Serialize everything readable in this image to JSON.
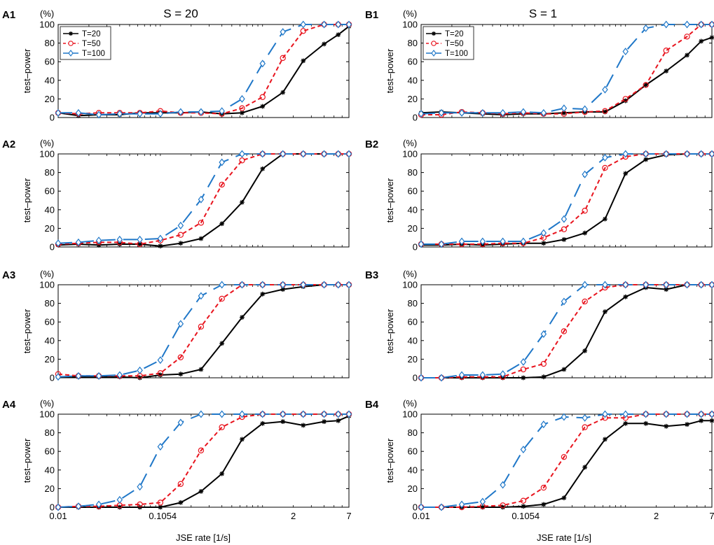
{
  "figure": {
    "column_titles": [
      "S = 20",
      "S = 1"
    ],
    "xlabel": "JSE rate [1/s]",
    "ylabel": "test–power",
    "unit_label": "(%)",
    "colors": {
      "T20": "#000000",
      "T50": "#e8141e",
      "T100": "#1f77c8"
    }
  },
  "legend": [
    "T=20",
    "T=50",
    "T=100"
  ],
  "chart_data": [
    {
      "id": "A1",
      "label": "A1",
      "type": "line",
      "title": "S = 20",
      "xlabel": "JSE rate [1/s]",
      "ylabel": "test–power",
      "xscale": "log",
      "xlim": [
        0.01,
        7
      ],
      "ylim": [
        0,
        100
      ],
      "xticks": [
        0.01,
        0.1054,
        2,
        7
      ],
      "xtick_labels": [
        "0.01",
        "0.1054",
        "2",
        "7"
      ],
      "yticks": [
        0,
        20,
        40,
        60,
        80,
        100
      ],
      "ytick_labels": [
        "0",
        "20",
        "40",
        "60",
        "80",
        "100"
      ],
      "legend_position": "top-left",
      "x": [
        0.01,
        0.0158,
        0.025,
        0.04,
        0.063,
        0.1,
        0.158,
        0.25,
        0.4,
        0.63,
        1.0,
        1.58,
        2.5,
        4.0,
        5.5,
        7.0
      ],
      "series": [
        {
          "name": "T=20",
          "values": [
            5,
            2,
            3,
            3,
            5,
            5,
            5,
            6,
            4,
            5,
            12,
            27,
            61,
            79,
            89,
            98
          ]
        },
        {
          "name": "T=50",
          "values": [
            5,
            4,
            5,
            5,
            5,
            7,
            5,
            5,
            4,
            10,
            22,
            64,
            93,
            100,
            100,
            100
          ]
        },
        {
          "name": "T=100",
          "values": [
            5,
            5,
            3,
            4,
            4,
            4,
            6,
            6,
            7,
            20,
            58,
            92,
            100,
            100,
            100,
            100
          ]
        }
      ]
    },
    {
      "id": "B1",
      "label": "B1",
      "type": "line",
      "title": "S = 1",
      "xlabel": "JSE rate [1/s]",
      "ylabel": "test–power",
      "xscale": "log",
      "xlim": [
        0.01,
        7
      ],
      "ylim": [
        0,
        100
      ],
      "xticks": [
        0.01,
        0.1054,
        2,
        7
      ],
      "xtick_labels": [
        "0.01",
        "0.1054",
        "2",
        "7"
      ],
      "yticks": [
        0,
        20,
        40,
        60,
        80,
        100
      ],
      "ytick_labels": [
        "0",
        "20",
        "40",
        "60",
        "80",
        "100"
      ],
      "legend_position": "top-left",
      "x": [
        0.01,
        0.0158,
        0.025,
        0.04,
        0.063,
        0.1,
        0.158,
        0.25,
        0.4,
        0.63,
        1.0,
        1.58,
        2.5,
        4.0,
        5.5,
        7.0
      ],
      "series": [
        {
          "name": "T=20",
          "values": [
            5,
            6,
            5,
            4,
            3,
            4,
            4,
            5,
            6,
            6,
            18,
            35,
            50,
            67,
            82,
            86
          ]
        },
        {
          "name": "T=50",
          "values": [
            3,
            3,
            6,
            5,
            4,
            5,
            4,
            4,
            6,
            7,
            20,
            35,
            72,
            87,
            100,
            100
          ]
        },
        {
          "name": "T=100",
          "values": [
            4,
            5,
            5,
            5,
            5,
            6,
            5,
            10,
            9,
            30,
            71,
            96,
            100,
            100,
            100,
            100
          ]
        }
      ]
    },
    {
      "id": "A2",
      "label": "A2",
      "type": "line",
      "title": "",
      "xlabel": "JSE rate [1/s]",
      "ylabel": "test–power",
      "xscale": "log",
      "xlim": [
        0.01,
        7
      ],
      "ylim": [
        0,
        100
      ],
      "xticks": [
        0.01,
        0.1054,
        2,
        7
      ],
      "xtick_labels": [
        "0.01",
        "0.1054",
        "2",
        "7"
      ],
      "yticks": [
        0,
        20,
        40,
        60,
        80,
        100
      ],
      "ytick_labels": [
        "0",
        "20",
        "40",
        "60",
        "80",
        "100"
      ],
      "x": [
        0.01,
        0.0158,
        0.025,
        0.04,
        0.063,
        0.1,
        0.158,
        0.25,
        0.4,
        0.63,
        1.0,
        1.58,
        2.5,
        4.0,
        5.5,
        7.0
      ],
      "series": [
        {
          "name": "T=20",
          "values": [
            2,
            3,
            2,
            3,
            3,
            1,
            4,
            9,
            25,
            48,
            84,
            100,
            100,
            100,
            100,
            100
          ]
        },
        {
          "name": "T=50",
          "values": [
            3,
            4,
            5,
            5,
            3,
            7,
            13,
            26,
            67,
            93,
            100,
            100,
            100,
            100,
            100,
            100
          ]
        },
        {
          "name": "T=100",
          "values": [
            4,
            5,
            7,
            8,
            8,
            9,
            23,
            51,
            91,
            100,
            100,
            100,
            100,
            100,
            100,
            100
          ]
        }
      ]
    },
    {
      "id": "B2",
      "label": "B2",
      "type": "line",
      "title": "",
      "xlabel": "JSE rate [1/s]",
      "ylabel": "test–power",
      "xscale": "log",
      "xlim": [
        0.01,
        7
      ],
      "ylim": [
        0,
        100
      ],
      "xticks": [
        0.01,
        0.1054,
        2,
        7
      ],
      "xtick_labels": [
        "0.01",
        "0.1054",
        "2",
        "7"
      ],
      "yticks": [
        0,
        20,
        40,
        60,
        80,
        100
      ],
      "ytick_labels": [
        "0",
        "20",
        "40",
        "60",
        "80",
        "100"
      ],
      "x": [
        0.01,
        0.0158,
        0.025,
        0.04,
        0.063,
        0.1,
        0.158,
        0.25,
        0.4,
        0.63,
        1.0,
        1.58,
        2.5,
        4.0,
        5.5,
        7.0
      ],
      "series": [
        {
          "name": "T=20",
          "values": [
            2,
            2,
            3,
            2,
            3,
            4,
            4,
            8,
            15,
            30,
            79,
            94,
            99,
            100,
            100,
            100
          ]
        },
        {
          "name": "T=50",
          "values": [
            3,
            3,
            3,
            3,
            4,
            4,
            10,
            19,
            39,
            85,
            97,
            100,
            100,
            100,
            100,
            100
          ]
        },
        {
          "name": "T=100",
          "values": [
            3,
            3,
            6,
            6,
            6,
            6,
            15,
            30,
            78,
            96,
            100,
            100,
            100,
            100,
            100,
            100
          ]
        }
      ]
    },
    {
      "id": "A3",
      "label": "A3",
      "type": "line",
      "title": "",
      "xlabel": "JSE rate [1/s]",
      "ylabel": "test–power",
      "xscale": "log",
      "xlim": [
        0.01,
        7
      ],
      "ylim": [
        0,
        100
      ],
      "xticks": [
        0.01,
        0.1054,
        2,
        7
      ],
      "xtick_labels": [
        "0.01",
        "0.1054",
        "2",
        "7"
      ],
      "yticks": [
        0,
        20,
        40,
        60,
        80,
        100
      ],
      "ytick_labels": [
        "0",
        "20",
        "40",
        "60",
        "80",
        "100"
      ],
      "x": [
        0.01,
        0.0158,
        0.025,
        0.04,
        0.063,
        0.1,
        0.158,
        0.25,
        0.4,
        0.63,
        1.0,
        1.58,
        2.5,
        4.0,
        5.5,
        7.0
      ],
      "series": [
        {
          "name": "T=20",
          "values": [
            1,
            1,
            1,
            1,
            0,
            3,
            4,
            9,
            37,
            65,
            90,
            95,
            98,
            100,
            100,
            100
          ]
        },
        {
          "name": "T=50",
          "values": [
            4,
            2,
            2,
            2,
            2,
            5,
            22,
            55,
            85,
            100,
            100,
            100,
            100,
            100,
            100,
            100
          ]
        },
        {
          "name": "T=100",
          "values": [
            1,
            2,
            2,
            3,
            8,
            19,
            58,
            88,
            100,
            100,
            100,
            100,
            100,
            100,
            100,
            100
          ]
        }
      ]
    },
    {
      "id": "B3",
      "label": "B3",
      "type": "line",
      "title": "",
      "xlabel": "JSE rate [1/s]",
      "ylabel": "test–power",
      "xscale": "log",
      "xlim": [
        0.01,
        7
      ],
      "ylim": [
        0,
        100
      ],
      "xticks": [
        0.01,
        0.1054,
        2,
        7
      ],
      "xtick_labels": [
        "0.01",
        "0.1054",
        "2",
        "7"
      ],
      "yticks": [
        0,
        20,
        40,
        60,
        80,
        100
      ],
      "ytick_labels": [
        "0",
        "20",
        "40",
        "60",
        "80",
        "100"
      ],
      "x": [
        0.01,
        0.0158,
        0.025,
        0.04,
        0.063,
        0.1,
        0.158,
        0.25,
        0.4,
        0.63,
        1.0,
        1.58,
        2.5,
        4.0,
        5.5,
        7.0
      ],
      "series": [
        {
          "name": "T=20",
          "values": [
            0,
            0,
            0,
            0,
            0,
            0,
            1,
            9,
            29,
            71,
            87,
            97,
            95,
            100,
            100,
            100
          ]
        },
        {
          "name": "T=50",
          "values": [
            0,
            0,
            1,
            1,
            1,
            9,
            15,
            50,
            82,
            97,
            100,
            100,
            100,
            100,
            100,
            100
          ]
        },
        {
          "name": "T=100",
          "values": [
            0,
            0,
            3,
            3,
            4,
            17,
            47,
            82,
            100,
            100,
            100,
            100,
            100,
            100,
            100,
            100
          ]
        }
      ]
    },
    {
      "id": "A4",
      "label": "A4",
      "type": "line",
      "title": "",
      "xlabel": "JSE rate [1/s]",
      "ylabel": "test–power",
      "xscale": "log",
      "xlim": [
        0.01,
        7
      ],
      "ylim": [
        0,
        100
      ],
      "xticks": [
        0.01,
        0.1054,
        2,
        7
      ],
      "xtick_labels": [
        "0.01",
        "0.1054",
        "2",
        "7"
      ],
      "yticks": [
        0,
        20,
        40,
        60,
        80,
        100
      ],
      "ytick_labels": [
        "0",
        "20",
        "40",
        "60",
        "80",
        "100"
      ],
      "x": [
        0.01,
        0.0158,
        0.025,
        0.04,
        0.063,
        0.1,
        0.158,
        0.25,
        0.4,
        0.63,
        1.0,
        1.58,
        2.5,
        4.0,
        5.5,
        7.0
      ],
      "series": [
        {
          "name": "T=20",
          "values": [
            0,
            0,
            0,
            0,
            0,
            0,
            5,
            17,
            36,
            73,
            90,
            92,
            88,
            92,
            93,
            98
          ]
        },
        {
          "name": "T=50",
          "values": [
            0,
            1,
            1,
            2,
            3,
            5,
            25,
            61,
            86,
            97,
            100,
            100,
            100,
            100,
            100,
            100
          ]
        },
        {
          "name": "T=100",
          "values": [
            0,
            1,
            3,
            8,
            22,
            65,
            91,
            100,
            100,
            100,
            100,
            100,
            100,
            100,
            100,
            100
          ]
        }
      ]
    },
    {
      "id": "B4",
      "label": "B4",
      "type": "line",
      "title": "",
      "xlabel": "JSE rate [1/s]",
      "ylabel": "test–power",
      "xscale": "log",
      "xlim": [
        0.01,
        7
      ],
      "ylim": [
        0,
        100
      ],
      "xticks": [
        0.01,
        0.1054,
        2,
        7
      ],
      "xtick_labels": [
        "0.01",
        "0.1054",
        "2",
        "7"
      ],
      "yticks": [
        0,
        20,
        40,
        60,
        80,
        100
      ],
      "ytick_labels": [
        "0",
        "20",
        "40",
        "60",
        "80",
        "100"
      ],
      "x": [
        0.01,
        0.0158,
        0.025,
        0.04,
        0.063,
        0.1,
        0.158,
        0.25,
        0.4,
        0.63,
        1.0,
        1.58,
        2.5,
        4.0,
        5.5,
        7.0
      ],
      "series": [
        {
          "name": "T=20",
          "values": [
            0,
            0,
            0,
            0,
            0,
            1,
            3,
            10,
            43,
            73,
            90,
            90,
            87,
            89,
            93,
            93
          ]
        },
        {
          "name": "T=50",
          "values": [
            0,
            0,
            0,
            1,
            2,
            7,
            21,
            54,
            86,
            96,
            96,
            100,
            100,
            100,
            100,
            100
          ]
        },
        {
          "name": "T=100",
          "values": [
            0,
            0,
            3,
            6,
            24,
            62,
            89,
            97,
            96,
            100,
            100,
            100,
            100,
            100,
            100,
            100
          ]
        }
      ]
    }
  ]
}
